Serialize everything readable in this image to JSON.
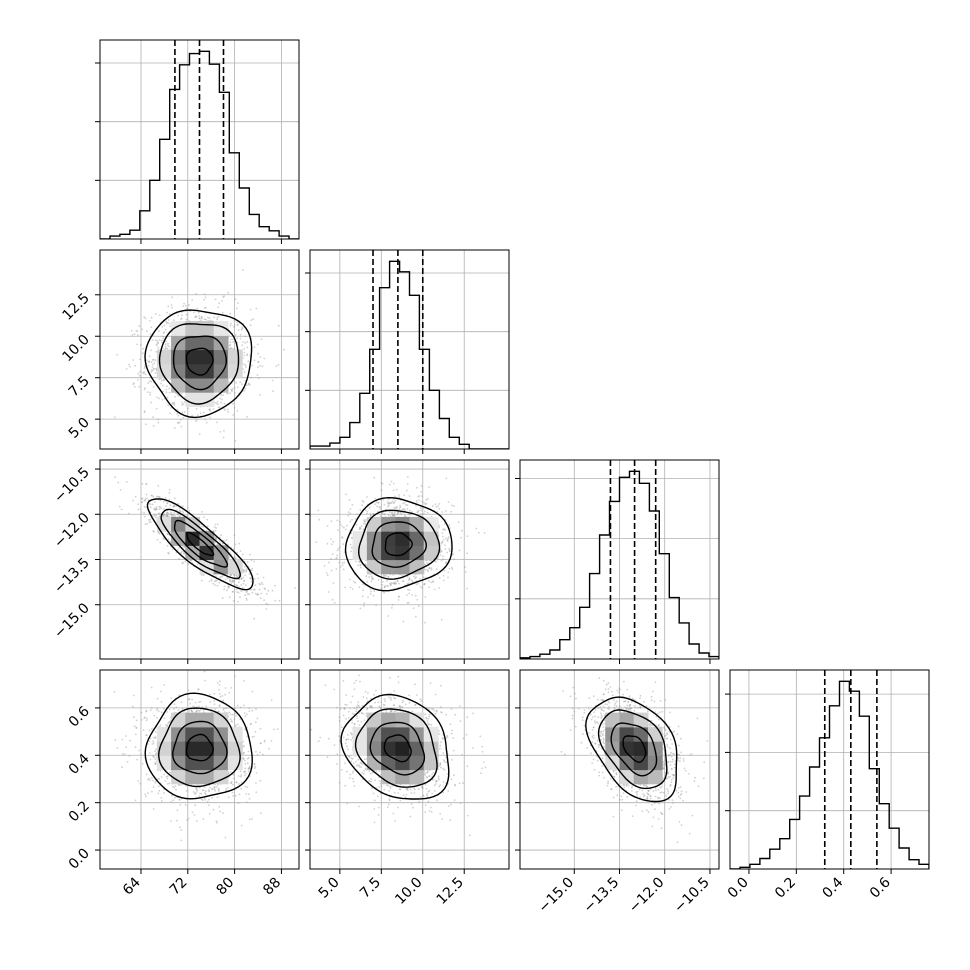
{
  "chart_data": {
    "type": "corner",
    "title": "",
    "parameters": [
      {
        "xlim": [
          57,
          91
        ],
        "ticks": [
          64,
          72,
          80,
          88
        ],
        "tick_labels": [
          "64",
          "72",
          "80",
          "88"
        ],
        "quantiles": [
          69.8,
          74.0,
          78.1
        ],
        "hist": {
          "edges": [
            57.0,
            58.7,
            60.4,
            62.1,
            63.8,
            65.5,
            67.2,
            68.9,
            70.6,
            72.3,
            74.0,
            75.7,
            77.4,
            79.1,
            80.8,
            82.5,
            84.2,
            85.9,
            87.6,
            89.3,
            91.0
          ],
          "counts": [
            0,
            5,
            8,
            15,
            48,
            100,
            170,
            255,
            297,
            316,
            320,
            298,
            250,
            147,
            87,
            42,
            21,
            14,
            5,
            0
          ]
        }
      },
      {
        "xlim": [
          3.2,
          15.2
        ],
        "ticks": [
          5.0,
          7.5,
          10.0,
          12.5
        ],
        "tick_labels": [
          "5.0",
          "7.5",
          "10.0",
          "12.5"
        ],
        "quantiles": [
          7.0,
          8.5,
          10.0
        ],
        "hist": {
          "edges": [
            3.2,
            3.8,
            4.4,
            5.0,
            5.6,
            6.2,
            6.8,
            7.4,
            8.0,
            8.6,
            9.2,
            9.8,
            10.4,
            11.0,
            11.6,
            12.2,
            12.8,
            13.4,
            14.0,
            14.6,
            15.2
          ],
          "counts": [
            5,
            5,
            10,
            20,
            45,
            95,
            170,
            275,
            320,
            302,
            262,
            170,
            100,
            52,
            20,
            8,
            0,
            0,
            0,
            0
          ]
        }
      },
      {
        "xlim": [
          -16.8,
          -10.2
        ],
        "ticks": [
          -15.0,
          -13.5,
          -12.0,
          -10.5
        ],
        "tick_labels": [
          "−15.0",
          "−13.5",
          "−12.0",
          "−10.5"
        ],
        "quantiles": [
          -13.8,
          -13.0,
          -12.3
        ],
        "hist": {
          "edges": [
            -16.8,
            -16.47,
            -16.14,
            -15.81,
            -15.48,
            -15.15,
            -14.82,
            -14.49,
            -14.16,
            -13.83,
            -13.5,
            -13.17,
            -12.84,
            -12.51,
            -12.18,
            -11.85,
            -11.52,
            -11.19,
            -10.86,
            -10.53,
            -10.2
          ],
          "counts": [
            2,
            4,
            8,
            15,
            32,
            52,
            86,
            142,
            206,
            262,
            302,
            312,
            292,
            246,
            175,
            102,
            60,
            25,
            10,
            4
          ]
        }
      },
      {
        "xlim": [
          -0.08,
          0.76
        ],
        "ticks": [
          0.0,
          0.2,
          0.4,
          0.6
        ],
        "tick_labels": [
          "0.0",
          "0.2",
          "0.4",
          "0.6"
        ],
        "quantiles": [
          0.32,
          0.43,
          0.54
        ],
        "hist": {
          "edges": [
            -0.08,
            -0.038,
            0.004,
            0.046,
            0.088,
            0.13,
            0.172,
            0.214,
            0.256,
            0.298,
            0.34,
            0.382,
            0.424,
            0.466,
            0.508,
            0.55,
            0.592,
            0.634,
            0.676,
            0.718,
            0.76
          ],
          "counts": [
            0,
            3,
            8,
            18,
            34,
            52,
            85,
            125,
            175,
            225,
            280,
            322,
            305,
            262,
            172,
            112,
            70,
            36,
            16,
            8
          ]
        }
      }
    ],
    "pairs": [
      {
        "row": 1,
        "col": 0,
        "center": [
          74.0,
          8.5
        ],
        "sd": [
          4.5,
          1.6
        ],
        "rho": 0.0
      },
      {
        "row": 2,
        "col": 0,
        "center": [
          74.0,
          -13.0
        ],
        "sd": [
          4.5,
          0.75
        ],
        "rho": -0.85
      },
      {
        "row": 2,
        "col": 1,
        "center": [
          8.5,
          -13.0
        ],
        "sd": [
          1.6,
          0.75
        ],
        "rho": 0.05
      },
      {
        "row": 3,
        "col": 0,
        "center": [
          74.0,
          0.43
        ],
        "sd": [
          4.5,
          0.11
        ],
        "rho": 0.0
      },
      {
        "row": 3,
        "col": 1,
        "center": [
          8.5,
          0.43
        ],
        "sd": [
          1.6,
          0.11
        ],
        "rho": -0.2
      },
      {
        "row": 3,
        "col": 2,
        "center": [
          -13.0,
          0.43
        ],
        "sd": [
          0.75,
          0.11
        ],
        "rho": -0.4
      }
    ],
    "contour_levels_sigma": [
      0.5,
      1.0,
      1.5,
      2.0
    ],
    "grid": true,
    "quantile_line_style": "dashed",
    "colors": {
      "line": "#000000",
      "grid": "#b0b0b0",
      "points": "#9a9a9a",
      "density_dark": "#1a1a1a",
      "background": "#ffffff"
    }
  }
}
